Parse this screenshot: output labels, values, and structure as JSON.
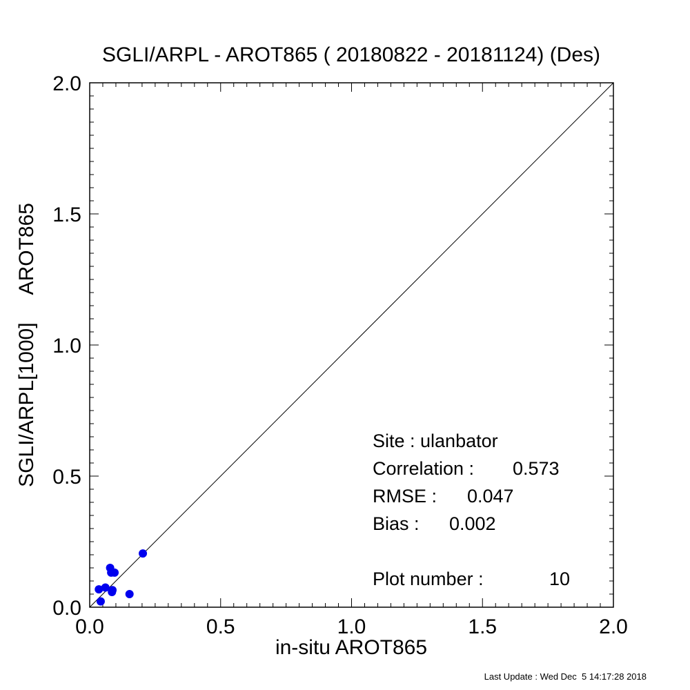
{
  "chart_data": {
    "type": "scatter",
    "title": "SGLI/ARPL - AROT865 ( 20180822 - 20181124) (Des)",
    "xlabel": "in-situ AROT865",
    "ylabel": "SGLI/ARPL[1000]     AROT865",
    "xlim": [
      0.0,
      2.0
    ],
    "ylim": [
      0.0,
      2.0
    ],
    "xticks": [
      "0.0",
      "0.5",
      "1.0",
      "1.5",
      "2.0"
    ],
    "yticks": [
      "0.0",
      "0.5",
      "1.0",
      "1.5",
      "2.0"
    ],
    "major_tick_step": 0.5,
    "minor_tick_step": 0.05,
    "grid": false,
    "reference_line": "1:1",
    "point_color": "#0000ee",
    "line_color": "#000000",
    "points": [
      {
        "x": 0.035,
        "y": 0.068
      },
      {
        "x": 0.042,
        "y": 0.022
      },
      {
        "x": 0.06,
        "y": 0.075
      },
      {
        "x": 0.078,
        "y": 0.15
      },
      {
        "x": 0.082,
        "y": 0.132
      },
      {
        "x": 0.085,
        "y": 0.058
      },
      {
        "x": 0.087,
        "y": 0.065
      },
      {
        "x": 0.095,
        "y": 0.132
      },
      {
        "x": 0.152,
        "y": 0.05
      },
      {
        "x": 0.203,
        "y": 0.205
      }
    ],
    "annotations": {
      "site": "Site : ulanbator",
      "correlation_label": "Correlation :",
      "correlation_value": "0.573",
      "rmse_label": "RMSE :",
      "rmse_value": "0.047",
      "bias_label": "Bias :",
      "bias_value": "0.002",
      "plot_number_label": "Plot number :",
      "plot_number_value": "10"
    }
  },
  "footer": "Last Update : Wed Dec  5 14:17:28 2018"
}
